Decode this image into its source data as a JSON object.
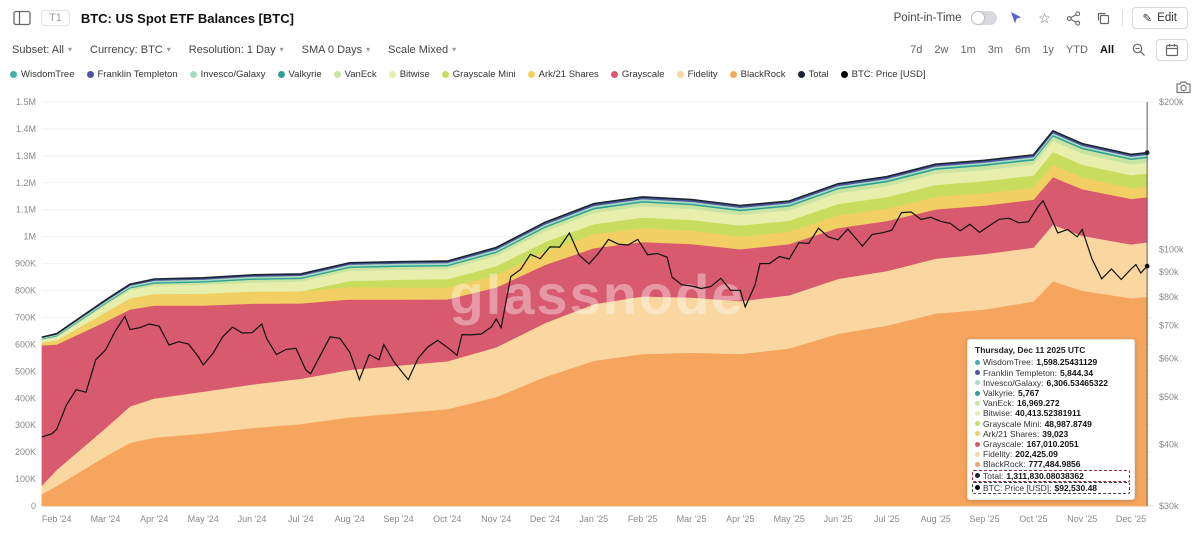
{
  "header": {
    "tab": "T1",
    "title": "BTC: US Spot ETF Balances [BTC]",
    "point_in_time_label": "Point-in-Time",
    "edit_label": "Edit"
  },
  "toolbar": {
    "filters": [
      {
        "label": "Subset: All"
      },
      {
        "label": "Currency: BTC"
      },
      {
        "label": "Resolution: 1 Day"
      },
      {
        "label": "SMA 0 Days"
      },
      {
        "label": "Scale Mixed"
      }
    ],
    "ranges": [
      "7d",
      "2w",
      "1m",
      "3m",
      "6m",
      "1y",
      "YTD",
      "All"
    ],
    "active_range": "All"
  },
  "legend": {
    "items": [
      {
        "label": "WisdomTree",
        "color": "#45b0a7"
      },
      {
        "label": "Franklin Templeton",
        "color": "#50549f"
      },
      {
        "label": "Invesco/Galaxy",
        "color": "#a8dcc0"
      },
      {
        "label": "Valkyrie",
        "color": "#2fa193"
      },
      {
        "label": "VanEck",
        "color": "#c9e4a3"
      },
      {
        "label": "Bitwise",
        "color": "#e8efad"
      },
      {
        "label": "Grayscale Mini",
        "color": "#c8dd5e"
      },
      {
        "label": "Ark/21 Shares",
        "color": "#f2cf63"
      },
      {
        "label": "Grayscale",
        "color": "#d75a6e"
      },
      {
        "label": "Fidelity",
        "color": "#fad7a0"
      },
      {
        "label": "BlackRock",
        "color": "#f6a55e"
      },
      {
        "label": "Total",
        "color": "#1b2433"
      },
      {
        "label": "BTC: Price [USD]",
        "color": "#000000"
      }
    ]
  },
  "tooltip": {
    "title": "Thursday, Dec 11 2025 UTC",
    "rows": [
      {
        "label": "WisdomTree",
        "value": "1,598.25431129",
        "color": "#45b0a7"
      },
      {
        "label": "Franklin Templeton",
        "value": "5,844.34",
        "color": "#50549f"
      },
      {
        "label": "Invesco/Galaxy",
        "value": "6,306.53465322",
        "color": "#a8dcc0"
      },
      {
        "label": "Valkyrie",
        "value": "5,767",
        "color": "#2fa193"
      },
      {
        "label": "VanEck",
        "value": "16,969.272",
        "color": "#c9e4a3"
      },
      {
        "label": "Bitwise",
        "value": "40,413.52381911",
        "color": "#e8efad"
      },
      {
        "label": "Grayscale Mini",
        "value": "48,987.8749",
        "color": "#c8dd5e"
      },
      {
        "label": "Ark/21 Shares",
        "value": "39,023",
        "color": "#f2cf63"
      },
      {
        "label": "Grayscale",
        "value": "167,010.2051",
        "color": "#d75a6e"
      },
      {
        "label": "Fidelity",
        "value": "202,425.09",
        "color": "#fad7a0"
      },
      {
        "label": "BlackRock",
        "value": "777,484.9856",
        "color": "#f6a55e"
      },
      {
        "label": "Total",
        "value": "1,311,830.08038362",
        "color": "#1b2433",
        "highlight": true,
        "highlight_color": "#a03040"
      },
      {
        "label": "BTC: Price [USD]",
        "value": "$92,530.48",
        "color": "#000000",
        "highlight": true,
        "highlight_color": "#444444"
      }
    ]
  },
  "chart_data": {
    "type": "stacked-area+line",
    "title": "BTC: US Spot ETF Balances [BTC]",
    "watermark": "glassnode",
    "t_domain": [
      0.7,
      23.45
    ],
    "crosshair_t": 23.33,
    "x_tick_labels": [
      "Feb '24",
      "Mar '24",
      "Apr '24",
      "May '24",
      "Jun '24",
      "Jul '24",
      "Aug '24",
      "Sep '24",
      "Oct '24",
      "Nov '24",
      "Dec '24",
      "Jan '25",
      "Feb '25",
      "Mar '25",
      "Apr '25",
      "May '25",
      "Jun '25",
      "Jul '25",
      "Aug '25",
      "Sep '25",
      "Oct '25",
      "Nov '25",
      "Dec '25"
    ],
    "left_axis": {
      "min": 0,
      "max": 1500000,
      "ticks": [
        {
          "v": 1500000,
          "label": "1.5M"
        },
        {
          "v": 1400000,
          "label": "1.4M"
        },
        {
          "v": 1300000,
          "label": "1.3M"
        },
        {
          "v": 1200000,
          "label": "1.2M"
        },
        {
          "v": 1100000,
          "label": "1.1M"
        },
        {
          "v": 1000000,
          "label": "1M"
        },
        {
          "v": 900000,
          "label": "900K"
        },
        {
          "v": 800000,
          "label": "800K"
        },
        {
          "v": 700000,
          "label": "700K"
        },
        {
          "v": 600000,
          "label": "600K"
        },
        {
          "v": 500000,
          "label": "500K"
        },
        {
          "v": 400000,
          "label": "400K"
        },
        {
          "v": 300000,
          "label": "300K"
        },
        {
          "v": 200000,
          "label": "200K"
        },
        {
          "v": 100000,
          "label": "100K"
        },
        {
          "v": 0,
          "label": "0"
        }
      ]
    },
    "right_axis": {
      "scale": "log",
      "min": 30000,
      "max": 200000,
      "ticks": [
        {
          "v": 200000,
          "label": "$200k"
        },
        {
          "v": 100000,
          "label": "$100k"
        },
        {
          "v": 90000,
          "label": "$90k"
        },
        {
          "v": 80000,
          "label": "$80k"
        },
        {
          "v": 70000,
          "label": "$70k"
        },
        {
          "v": 60000,
          "label": "$60k"
        },
        {
          "v": 50000,
          "label": "$50k"
        },
        {
          "v": 40000,
          "label": "$40k"
        },
        {
          "v": 30000,
          "label": "$30k"
        }
      ]
    },
    "months_t": [
      0.7,
      1,
      2,
      2.5,
      3,
      4,
      5,
      6,
      7,
      8,
      9,
      10,
      11,
      12,
      13,
      14,
      15,
      16,
      17,
      18,
      19,
      20,
      21,
      21.4,
      22,
      23,
      23.33
    ],
    "series": [
      {
        "name": "BlackRock",
        "color": "#f6a55e",
        "values": [
          45000,
          75000,
          185000,
          235000,
          255000,
          270000,
          290000,
          305000,
          330000,
          345000,
          360000,
          405000,
          480000,
          540000,
          565000,
          570000,
          565000,
          585000,
          640000,
          670000,
          715000,
          730000,
          760000,
          835000,
          800000,
          772000,
          777484.99
        ]
      },
      {
        "name": "Fidelity",
        "color": "#fad7a0",
        "values": [
          32000,
          60000,
          105000,
          135000,
          145000,
          155000,
          162000,
          168000,
          176000,
          177000,
          178000,
          185000,
          200000,
          210000,
          214000,
          205000,
          196000,
          198000,
          204000,
          203000,
          204000,
          206000,
          200000,
          210000,
          204000,
          200000,
          202425.09
        ]
      },
      {
        "name": "Grayscale",
        "color": "#d75a6e",
        "values": [
          520000,
          465000,
          395000,
          360000,
          345000,
          320000,
          300000,
          280000,
          262000,
          245000,
          230000,
          222000,
          216000,
          208000,
          202000,
          198000,
          193000,
          190000,
          189000,
          186000,
          183000,
          180000,
          178000,
          177000,
          173000,
          169000,
          167010.21
        ]
      },
      {
        "name": "Ark/21 Shares",
        "color": "#f2cf63",
        "values": [
          12000,
          16000,
          35000,
          42000,
          43000,
          44000,
          45000,
          45000,
          46000,
          45000,
          44000,
          46000,
          50000,
          52000,
          52000,
          50000,
          47000,
          46000,
          47000,
          46000,
          47000,
          46000,
          44000,
          45000,
          44000,
          40000,
          39023
        ]
      },
      {
        "name": "Grayscale Mini",
        "color": "#c8dd5e",
        "values": [
          0,
          0,
          0,
          0,
          0,
          0,
          0,
          0,
          22000,
          29000,
          31000,
          33000,
          35000,
          37000,
          39000,
          40000,
          41000,
          41000,
          42000,
          43000,
          44000,
          45000,
          46000,
          48000,
          47000,
          48000,
          48987.87
        ]
      },
      {
        "name": "Bitwise",
        "color": "#e8efad",
        "values": [
          8000,
          11000,
          26000,
          30000,
          31000,
          33000,
          34000,
          36000,
          38000,
          37000,
          37000,
          38000,
          40000,
          42000,
          42000,
          41000,
          40000,
          39000,
          40000,
          40000,
          41000,
          41000,
          40000,
          41000,
          41000,
          40000,
          40413.52
        ]
      },
      {
        "name": "VanEck",
        "color": "#c9e4a3",
        "values": [
          3000,
          4000,
          6000,
          7000,
          8000,
          9000,
          10000,
          10000,
          11000,
          11000,
          11000,
          12000,
          13000,
          13500,
          14000,
          14000,
          14000,
          14000,
          15000,
          15000,
          15500,
          16000,
          16000,
          17000,
          17000,
          17000,
          16969.27
        ]
      },
      {
        "name": "Valkyrie",
        "color": "#2fa193",
        "values": [
          2200,
          2600,
          3600,
          4200,
          4600,
          4800,
          5000,
          5200,
          5400,
          5400,
          5400,
          5500,
          5600,
          5700,
          5700,
          5700,
          5700,
          5700,
          5700,
          5800,
          5800,
          5800,
          5800,
          5800,
          5800,
          5800,
          5767
        ]
      },
      {
        "name": "Invesco/Galaxy",
        "color": "#a8dcc0",
        "values": [
          3500,
          4000,
          5000,
          5500,
          5800,
          6000,
          6200,
          6300,
          6300,
          6200,
          6200,
          6300,
          6500,
          6600,
          6500,
          6400,
          6300,
          6300,
          6300,
          6300,
          6300,
          6300,
          6300,
          6300,
          6300,
          6300,
          6306.53
        ]
      },
      {
        "name": "Franklin Templeton",
        "color": "#50549f",
        "values": [
          1200,
          1800,
          3200,
          4000,
          4400,
          4600,
          4800,
          5000,
          5200,
          5300,
          5400,
          5600,
          5900,
          6000,
          6000,
          5900,
          5800,
          5800,
          5800,
          5900,
          5900,
          5900,
          5900,
          5900,
          5900,
          5850,
          5844.34
        ]
      },
      {
        "name": "WisdomTree",
        "color": "#45b0a7",
        "values": [
          200,
          300,
          600,
          800,
          900,
          1000,
          1000,
          1100,
          1200,
          1200,
          1200,
          1300,
          1400,
          1500,
          1500,
          1500,
          1500,
          1500,
          1500,
          1600,
          1600,
          1600,
          1600,
          1600,
          1600,
          1600,
          1598.25
        ]
      }
    ],
    "total": {
      "name": "Total",
      "color": "#1b2433"
    },
    "price": {
      "name": "BTC: Price [USD]",
      "color": "#111111",
      "points": [
        [
          0.7,
          41500
        ],
        [
          0.9,
          42100
        ],
        [
          1.0,
          43000
        ],
        [
          1.2,
          48200
        ],
        [
          1.4,
          51800
        ],
        [
          1.6,
          51200
        ],
        [
          1.8,
          59600
        ],
        [
          2.0,
          62400
        ],
        [
          2.2,
          68200
        ],
        [
          2.4,
          73100
        ],
        [
          2.5,
          68700
        ],
        [
          2.7,
          69300
        ],
        [
          2.9,
          70500
        ],
        [
          3.1,
          69800
        ],
        [
          3.3,
          63900
        ],
        [
          3.5,
          64900
        ],
        [
          3.7,
          64200
        ],
        [
          3.9,
          60500
        ],
        [
          4.0,
          58200
        ],
        [
          4.2,
          61400
        ],
        [
          4.4,
          66400
        ],
        [
          4.6,
          69500
        ],
        [
          4.8,
          67600
        ],
        [
          5.0,
          67700
        ],
        [
          5.2,
          70500
        ],
        [
          5.3,
          65900
        ],
        [
          5.5,
          61100
        ],
        [
          5.7,
          62600
        ],
        [
          5.9,
          62900
        ],
        [
          6.1,
          56900
        ],
        [
          6.2,
          55800
        ],
        [
          6.4,
          60900
        ],
        [
          6.6,
          66400
        ],
        [
          6.8,
          65900
        ],
        [
          7.0,
          61800
        ],
        [
          7.2,
          54300
        ],
        [
          7.4,
          61100
        ],
        [
          7.6,
          59600
        ],
        [
          7.7,
          64000
        ],
        [
          7.9,
          59200
        ],
        [
          8.1,
          55800
        ],
        [
          8.2,
          54300
        ],
        [
          8.4,
          60000
        ],
        [
          8.6,
          63300
        ],
        [
          8.8,
          65300
        ],
        [
          9.0,
          63200
        ],
        [
          9.2,
          60900
        ],
        [
          9.3,
          67100
        ],
        [
          9.5,
          67000
        ],
        [
          9.7,
          67300
        ],
        [
          9.9,
          69500
        ],
        [
          10.0,
          72200
        ],
        [
          10.1,
          69300
        ],
        [
          10.3,
          88100
        ],
        [
          10.5,
          91100
        ],
        [
          10.7,
          97800
        ],
        [
          10.9,
          95800
        ],
        [
          11.1,
          101300
        ],
        [
          11.3,
          101200
        ],
        [
          11.5,
          108100
        ],
        [
          11.7,
          97400
        ],
        [
          11.9,
          93500
        ],
        [
          12.1,
          98400
        ],
        [
          12.3,
          104900
        ],
        [
          12.5,
          102600
        ],
        [
          12.7,
          102200
        ],
        [
          12.9,
          104900
        ],
        [
          13.1,
          97600
        ],
        [
          13.3,
          98200
        ],
        [
          13.5,
          96500
        ],
        [
          13.6,
          87900
        ],
        [
          13.8,
          84800
        ],
        [
          14.0,
          84300
        ],
        [
          14.2,
          83300
        ],
        [
          14.4,
          84100
        ],
        [
          14.6,
          87400
        ],
        [
          14.8,
          82600
        ],
        [
          15.0,
          82600
        ],
        [
          15.1,
          76400
        ],
        [
          15.3,
          84700
        ],
        [
          15.4,
          93600
        ],
        [
          15.6,
          93700
        ],
        [
          15.8,
          96800
        ],
        [
          16.0,
          95700
        ],
        [
          16.2,
          103300
        ],
        [
          16.4,
          102900
        ],
        [
          16.6,
          110600
        ],
        [
          16.8,
          106200
        ],
        [
          17.0,
          104700
        ],
        [
          17.2,
          110100
        ],
        [
          17.4,
          104500
        ],
        [
          17.5,
          101600
        ],
        [
          17.7,
          107400
        ],
        [
          17.9,
          108200
        ],
        [
          18.1,
          109500
        ],
        [
          18.3,
          119000
        ],
        [
          18.5,
          119300
        ],
        [
          18.7,
          115200
        ],
        [
          18.9,
          116400
        ],
        [
          19.1,
          114200
        ],
        [
          19.3,
          113100
        ],
        [
          19.5,
          109200
        ],
        [
          19.7,
          112600
        ],
        [
          19.9,
          108400
        ],
        [
          20.1,
          111900
        ],
        [
          20.3,
          115300
        ],
        [
          20.5,
          115900
        ],
        [
          20.7,
          113400
        ],
        [
          20.9,
          114000
        ],
        [
          21.1,
          122500
        ],
        [
          21.2,
          125800
        ],
        [
          21.4,
          113900
        ],
        [
          21.5,
          108100
        ],
        [
          21.7,
          109900
        ],
        [
          21.9,
          106200
        ],
        [
          22.0,
          109900
        ],
        [
          22.2,
          95700
        ],
        [
          22.4,
          87200
        ],
        [
          22.6,
          91300
        ],
        [
          22.8,
          86900
        ],
        [
          23.0,
          91300
        ],
        [
          23.1,
          93200
        ],
        [
          23.2,
          89600
        ],
        [
          23.33,
          92530
        ]
      ]
    }
  }
}
